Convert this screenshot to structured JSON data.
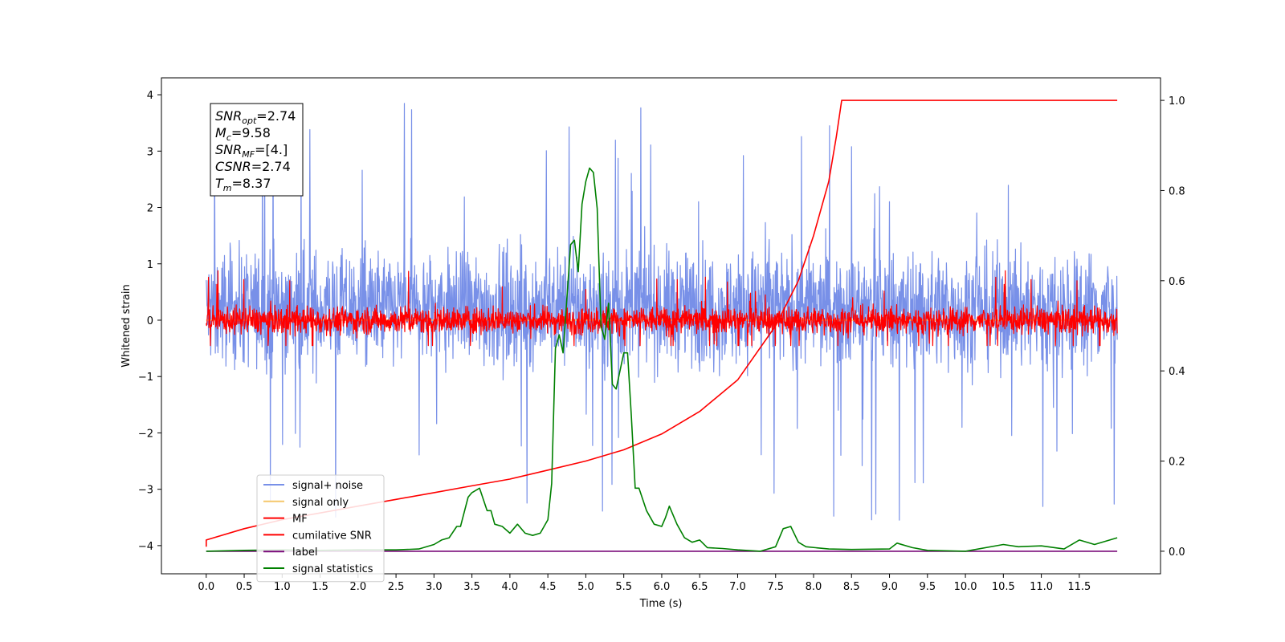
{
  "chart_data": {
    "type": "line",
    "title": "",
    "xlabel": "Time (s)",
    "ylabel": "Whitened strain",
    "xlim": [
      -0.59,
      12.57
    ],
    "ylim": [
      -4.5,
      4.3
    ],
    "y2lim": [
      -0.05,
      1.05
    ],
    "xticks": [
      "0.0",
      "0.5",
      "1.0",
      "1.5",
      "2.0",
      "2.5",
      "3.0",
      "3.5",
      "4.0",
      "4.5",
      "5.0",
      "5.5",
      "6.0",
      "6.5",
      "7.0",
      "7.5",
      "8.0",
      "8.5",
      "9.0",
      "9.5",
      "10.0",
      "10.5",
      "11.0",
      "11.5"
    ],
    "yticks": [
      "4",
      "3",
      "2",
      "1",
      "0",
      "−1",
      "−2",
      "−3",
      "−4"
    ],
    "y2ticks": [
      "1.0",
      "0.8",
      "0.6",
      "0.4",
      "0.2",
      "0.0"
    ],
    "grid": false,
    "legend_position": "lower-left",
    "series": [
      {
        "name": "signal+ noise",
        "axis": "left",
        "color": "#7890e8",
        "kind": "noise",
        "x_range": [
          0,
          12
        ],
        "center": 0.2,
        "spread": 0.85,
        "peak": 3.9,
        "trough": -4.1
      },
      {
        "name": "signal only",
        "axis": "left",
        "color": "#f5c76b",
        "kind": "flat",
        "x_range": [
          0,
          12
        ],
        "value": 0.0
      },
      {
        "name": "MF",
        "axis": "left",
        "color": "#ff0000",
        "kind": "noise",
        "x_range": [
          0,
          12
        ],
        "center": 0.0,
        "spread": 0.2,
        "peak": 1.0,
        "trough": -0.45
      },
      {
        "name": "cumilative SNR",
        "axis": "right",
        "color": "#ff0000",
        "x": [
          0.0,
          0.0,
          0.5,
          1.0,
          1.5,
          2.0,
          2.5,
          3.0,
          3.5,
          4.0,
          4.5,
          5.0,
          5.5,
          6.0,
          6.5,
          7.0,
          7.5,
          7.8,
          8.0,
          8.2,
          8.3,
          8.37,
          9.0,
          10.0,
          11.0,
          12.0
        ],
        "values": [
          0.01,
          0.025,
          0.05,
          0.07,
          0.085,
          0.1,
          0.115,
          0.13,
          0.145,
          0.16,
          0.18,
          0.2,
          0.225,
          0.26,
          0.31,
          0.38,
          0.5,
          0.6,
          0.7,
          0.82,
          0.92,
          1.0,
          1.0,
          1.0,
          1.0,
          1.0
        ]
      },
      {
        "name": "label",
        "axis": "right",
        "color": "#7a0a7a",
        "x": [
          0.0,
          12.0
        ],
        "values": [
          0.0,
          0.0
        ]
      },
      {
        "name": "signal statistics",
        "axis": "right",
        "color": "#008000",
        "x": [
          0.0,
          0.5,
          1.0,
          1.5,
          2.0,
          2.5,
          2.8,
          3.0,
          3.1,
          3.2,
          3.3,
          3.35,
          3.45,
          3.5,
          3.6,
          3.7,
          3.75,
          3.8,
          3.9,
          4.0,
          4.1,
          4.2,
          4.3,
          4.4,
          4.5,
          4.55,
          4.6,
          4.65,
          4.7,
          4.8,
          4.85,
          4.9,
          4.95,
          5.0,
          5.05,
          5.1,
          5.15,
          5.2,
          5.25,
          5.3,
          5.35,
          5.4,
          5.5,
          5.55,
          5.6,
          5.65,
          5.7,
          5.8,
          5.9,
          6.0,
          6.05,
          6.1,
          6.2,
          6.3,
          6.4,
          6.5,
          6.6,
          6.8,
          7.0,
          7.3,
          7.5,
          7.6,
          7.7,
          7.8,
          7.9,
          8.2,
          8.5,
          9.0,
          9.1,
          9.3,
          9.5,
          10.0,
          10.5,
          10.7,
          11.0,
          11.3,
          11.5,
          11.7,
          12.0
        ],
        "values": [
          0.0,
          0.002,
          0.003,
          0.002,
          0.003,
          0.003,
          0.005,
          0.015,
          0.025,
          0.03,
          0.055,
          0.055,
          0.12,
          0.13,
          0.14,
          0.09,
          0.09,
          0.06,
          0.055,
          0.04,
          0.06,
          0.04,
          0.035,
          0.04,
          0.07,
          0.15,
          0.45,
          0.48,
          0.44,
          0.68,
          0.69,
          0.62,
          0.77,
          0.82,
          0.85,
          0.84,
          0.76,
          0.5,
          0.47,
          0.55,
          0.37,
          0.36,
          0.44,
          0.44,
          0.3,
          0.14,
          0.14,
          0.09,
          0.06,
          0.055,
          0.075,
          0.1,
          0.06,
          0.03,
          0.02,
          0.025,
          0.008,
          0.006,
          0.003,
          0.0,
          0.01,
          0.05,
          0.055,
          0.02,
          0.01,
          0.005,
          0.004,
          0.005,
          0.018,
          0.008,
          0.002,
          0.0,
          0.015,
          0.01,
          0.012,
          0.005,
          0.025,
          0.015,
          0.03
        ]
      }
    ],
    "annotation": {
      "lines": [
        {
          "base": "SNR",
          "sub": "opt",
          "value": "=2.74"
        },
        {
          "base": "M",
          "sub": "c",
          "value": "=9.58"
        },
        {
          "base": "SNR",
          "sub": "MF",
          "value": "=[4.]"
        },
        {
          "base": "CSNR",
          "sub": "",
          "value": "=2.74"
        },
        {
          "base": "T",
          "sub": "m",
          "value": "=8.37"
        }
      ]
    }
  }
}
